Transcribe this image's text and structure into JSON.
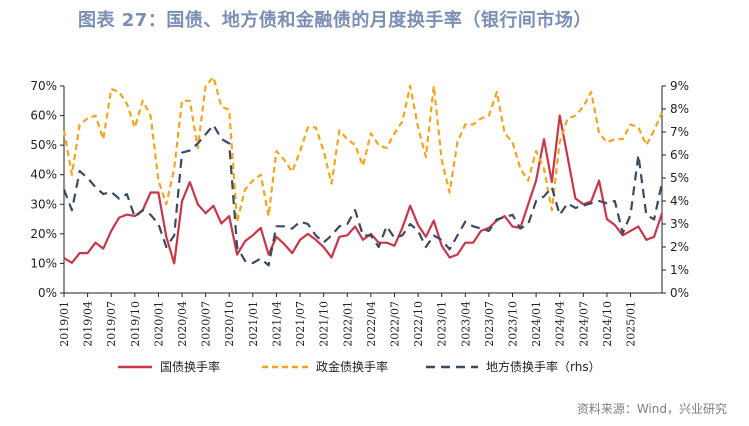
{
  "title": "图表 27：国债、地方债和金融债的月度换手率（银行间市场）",
  "source": "资料来源：Wind，兴业研究",
  "colors": {
    "treasury": "#c8364a",
    "policy": "#f4a41e",
    "local": "#3b4a63",
    "title": "#7a8fb3"
  },
  "chart_data": {
    "type": "line",
    "x_start": "2019/01",
    "x_tick_labels": [
      "2019/01",
      "2019/04",
      "2019/07",
      "2019/10",
      "2020/01",
      "2020/04",
      "2020/07",
      "2020/10",
      "2021/01",
      "2021/04",
      "2021/07",
      "2021/10",
      "2022/01",
      "2022/04",
      "2022/07",
      "2022/10",
      "2023/01",
      "2023/04",
      "2023/07",
      "2023/10",
      "2024/01",
      "2024/04",
      "2024/07",
      "2024/10",
      "2025/01"
    ],
    "y_left": {
      "min": 0,
      "max": 70,
      "step": 10,
      "tick_labels": [
        "0%",
        "10%",
        "20%",
        "30%",
        "40%",
        "50%",
        "60%",
        "70%"
      ]
    },
    "y_right": {
      "min": 0,
      "max": 9,
      "step": 1,
      "tick_labels": [
        "0%",
        "1%",
        "2%",
        "3%",
        "4%",
        "5%",
        "6%",
        "7%",
        "8%",
        "9%"
      ]
    },
    "legend_position": "bottom",
    "grid": false,
    "series": [
      {
        "name": "国债换手率",
        "axis": "left",
        "style": "solid",
        "color": "#c8364a",
        "values": [
          11.8,
          10.2,
          13.5,
          13.5,
          17,
          15,
          21,
          25.5,
          26.5,
          26,
          28,
          34,
          34,
          19,
          10,
          31,
          37.5,
          30,
          27,
          29.5,
          23.5,
          26,
          13,
          17.5,
          19.5,
          22,
          13,
          19,
          16.5,
          13.5,
          18,
          20,
          18,
          15.5,
          12,
          19,
          19.5,
          22.5,
          18,
          20,
          17,
          17,
          16,
          22,
          29.5,
          23,
          19,
          24.5,
          16,
          12,
          13,
          17,
          17,
          21,
          22,
          24.5,
          26,
          22.5,
          22,
          30,
          38,
          52,
          37.5,
          60,
          46,
          32,
          30,
          31,
          38,
          25,
          23,
          19.5,
          21,
          22.5,
          18,
          19,
          27
        ]
      },
      {
        "name": "政金债换手率",
        "axis": "left",
        "style": "dashed",
        "color": "#f4a41e",
        "values": [
          55,
          40,
          57,
          59,
          60,
          52,
          69,
          68,
          64,
          56,
          65,
          60,
          38,
          30,
          42,
          65,
          65,
          49,
          70,
          73,
          63,
          62,
          24,
          35,
          38,
          40,
          26,
          48,
          45,
          41,
          48,
          56,
          56,
          48,
          37,
          55,
          52,
          50,
          43,
          54,
          50,
          49,
          54,
          58,
          70,
          56,
          46,
          70,
          45,
          34,
          51,
          57,
          57,
          59,
          60,
          68,
          54,
          51,
          42,
          38,
          48,
          42,
          28,
          51,
          59,
          60,
          63,
          68,
          54,
          51,
          52,
          52,
          57,
          56,
          50,
          55,
          61
        ]
      },
      {
        "name": "地方债换手率（rhs）",
        "axis": "right",
        "style": "dashed",
        "color": "#3b4a63",
        "values": [
          4.5,
          3.6,
          5.3,
          5.0,
          4.6,
          4.3,
          4.4,
          4.1,
          4.3,
          3.3,
          3.6,
          3.4,
          3.0,
          2.0,
          2.5,
          6.1,
          6.2,
          6.5,
          6.9,
          7.3,
          6.7,
          6.5,
          2.0,
          1.4,
          1.3,
          1.5,
          1.2,
          2.9,
          2.9,
          2.8,
          3.1,
          3.0,
          2.5,
          2.2,
          2.5,
          2.9,
          3.0,
          3.6,
          2.5,
          2.5,
          2.0,
          2.9,
          2.4,
          2.5,
          3.0,
          2.7,
          2.0,
          2.5,
          2.3,
          1.9,
          2.5,
          3.1,
          2.9,
          2.8,
          2.7,
          3.2,
          3.3,
          3.4,
          2.8,
          3.0,
          4.0,
          4.2,
          4.6,
          3.4,
          3.9,
          3.7,
          3.8,
          3.9,
          4.0,
          3.9,
          4.0,
          2.6,
          3.4,
          6.0,
          3.4,
          3.2,
          4.8
        ]
      }
    ]
  }
}
